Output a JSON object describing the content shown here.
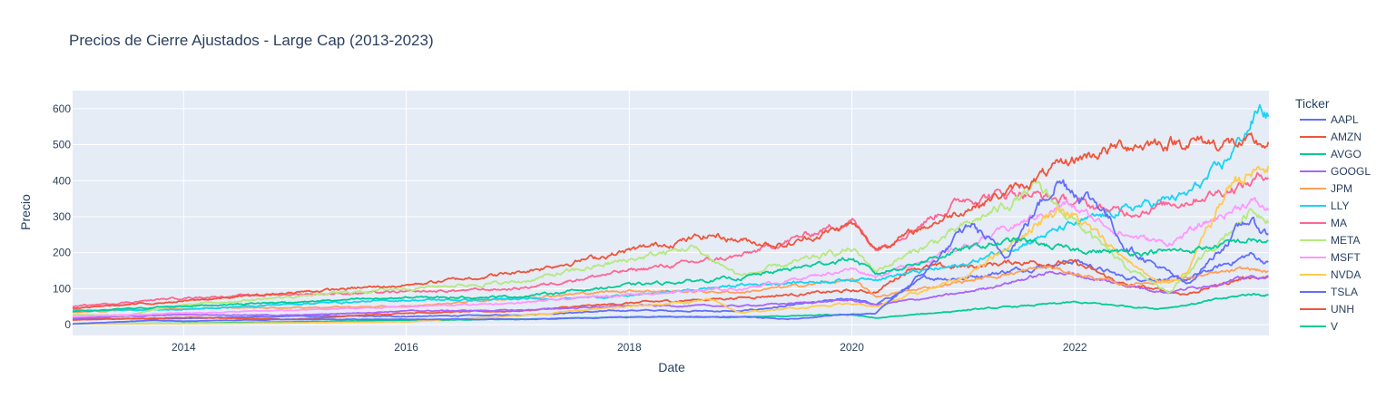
{
  "chart_data": {
    "type": "line",
    "title": "Precios de Cierre Ajustados - Large Cap (2013-2023)",
    "xlabel": "Date",
    "ylabel": "Precio",
    "x_range": [
      "2013-01-02",
      "2023-09-29"
    ],
    "ylim": [
      -30,
      650
    ],
    "x_ticks": [
      "2014",
      "2016",
      "2018",
      "2020",
      "2022"
    ],
    "y_ticks": [
      0,
      100,
      200,
      300,
      400,
      500,
      600
    ],
    "grid": true,
    "legend_title": "Ticker",
    "legend_position": "right",
    "background": "#e5ecf6",
    "series": [
      {
        "name": "AAPL",
        "color": "#636efa",
        "noise": 0.06,
        "x": [
          "2013-01-01",
          "2014-01-01",
          "2015-01-01",
          "2016-01-01",
          "2017-01-01",
          "2018-01-01",
          "2019-01-01",
          "2020-01-01",
          "2020-03-20",
          "2020-09-01",
          "2021-01-01",
          "2022-01-03",
          "2022-06-15",
          "2023-01-03",
          "2023-07-31",
          "2023-09-29"
        ],
        "y": [
          16,
          17,
          24,
          23,
          27,
          40,
          37,
          73,
          55,
          130,
          130,
          178,
          130,
          125,
          195,
          170
        ]
      },
      {
        "name": "AMZN",
        "color": "#ef553b",
        "noise": 0.06,
        "x": [
          "2013-01-01",
          "2014-01-01",
          "2015-01-01",
          "2016-01-01",
          "2017-01-01",
          "2018-01-01",
          "2019-01-01",
          "2020-01-01",
          "2020-03-20",
          "2020-07-15",
          "2021-01-01",
          "2021-07-01",
          "2022-01-03",
          "2022-06-15",
          "2023-01-03",
          "2023-07-31",
          "2023-09-29"
        ],
        "y": [
          13,
          20,
          15,
          33,
          38,
          60,
          75,
          94,
          90,
          160,
          160,
          175,
          170,
          110,
          85,
          135,
          127
        ]
      },
      {
        "name": "AVGO",
        "color": "#00cc96",
        "noise": 0.06,
        "x": [
          "2013-01-01",
          "2014-01-01",
          "2015-01-01",
          "2016-01-01",
          "2017-01-01",
          "2018-01-01",
          "2019-01-01",
          "2020-01-01",
          "2020-03-20",
          "2021-01-01",
          "2022-01-03",
          "2022-10-01",
          "2023-01-03",
          "2023-07-31",
          "2023-09-29"
        ],
        "y": [
          3,
          4,
          8,
          12,
          15,
          21,
          21,
          28,
          18,
          40,
          62,
          45,
          55,
          85,
          83
        ]
      },
      {
        "name": "GOOGL",
        "color": "#ab63fa",
        "noise": 0.05,
        "x": [
          "2013-01-01",
          "2014-01-01",
          "2015-01-01",
          "2016-01-01",
          "2017-01-01",
          "2018-01-01",
          "2019-01-01",
          "2020-01-01",
          "2020-03-20",
          "2021-01-01",
          "2021-11-01",
          "2022-06-15",
          "2022-11-01",
          "2023-07-31",
          "2023-09-29"
        ],
        "y": [
          18,
          28,
          26,
          38,
          40,
          53,
          52,
          68,
          55,
          88,
          148,
          110,
          90,
          132,
          131
        ]
      },
      {
        "name": "JPM",
        "color": "#ffa15a",
        "noise": 0.05,
        "x": [
          "2013-01-01",
          "2014-01-01",
          "2015-01-01",
          "2016-01-01",
          "2017-01-01",
          "2018-01-01",
          "2019-01-01",
          "2020-01-01",
          "2020-03-20",
          "2021-01-01",
          "2021-10-01",
          "2022-06-15",
          "2023-01-03",
          "2023-07-31",
          "2023-09-29"
        ],
        "y": [
          35,
          45,
          48,
          50,
          75,
          95,
          90,
          125,
          78,
          120,
          160,
          110,
          130,
          155,
          145
        ]
      },
      {
        "name": "LLY",
        "color": "#19d3f3",
        "noise": 0.05,
        "x": [
          "2013-01-01",
          "2014-01-01",
          "2015-01-01",
          "2016-01-01",
          "2017-01-01",
          "2018-01-01",
          "2019-01-01",
          "2020-01-01",
          "2020-03-20",
          "2021-01-01",
          "2021-12-01",
          "2022-06-15",
          "2023-01-03",
          "2023-05-01",
          "2023-08-31",
          "2023-09-29"
        ],
        "y": [
          40,
          42,
          58,
          68,
          70,
          80,
          110,
          125,
          130,
          165,
          270,
          320,
          360,
          440,
          600,
          580
        ]
      },
      {
        "name": "MA",
        "color": "#ff6692",
        "noise": 0.05,
        "x": [
          "2013-01-01",
          "2014-01-01",
          "2015-01-01",
          "2016-01-01",
          "2017-01-01",
          "2018-01-01",
          "2019-01-01",
          "2020-01-01",
          "2020-03-20",
          "2021-01-01",
          "2021-07-01",
          "2022-06-15",
          "2023-01-03",
          "2023-07-31",
          "2023-09-29"
        ],
        "y": [
          50,
          75,
          85,
          90,
          100,
          150,
          190,
          290,
          210,
          350,
          370,
          310,
          345,
          395,
          425
        ]
      },
      {
        "name": "META",
        "color": "#b6e880",
        "noise": 0.06,
        "x": [
          "2013-01-01",
          "2013-07-01",
          "2014-01-01",
          "2015-01-01",
          "2016-01-01",
          "2017-01-01",
          "2018-01-01",
          "2018-07-25",
          "2019-01-01",
          "2020-01-01",
          "2020-03-20",
          "2021-01-01",
          "2021-09-01",
          "2022-06-15",
          "2022-11-03",
          "2023-07-31",
          "2023-09-29"
        ],
        "y": [
          28,
          26,
          55,
          78,
          102,
          118,
          180,
          215,
          135,
          210,
          150,
          270,
          380,
          160,
          90,
          320,
          300
        ]
      },
      {
        "name": "MSFT",
        "color": "#ff97ff",
        "noise": 0.05,
        "x": [
          "2013-01-01",
          "2014-01-01",
          "2015-01-01",
          "2016-01-01",
          "2017-01-01",
          "2018-01-01",
          "2019-01-01",
          "2020-01-01",
          "2020-03-20",
          "2021-01-01",
          "2021-12-01",
          "2022-06-15",
          "2022-11-01",
          "2023-07-31",
          "2023-09-29"
        ],
        "y": [
          23,
          32,
          40,
          50,
          60,
          85,
          100,
          155,
          135,
          215,
          335,
          250,
          225,
          345,
          315
        ]
      },
      {
        "name": "NVDA",
        "color": "#fecb52",
        "noise": 0.07,
        "x": [
          "2013-01-01",
          "2014-01-01",
          "2015-01-01",
          "2016-01-01",
          "2017-01-01",
          "2018-01-01",
          "2018-10-01",
          "2019-01-01",
          "2020-01-01",
          "2020-03-20",
          "2021-01-01",
          "2021-11-15",
          "2022-10-01",
          "2023-01-03",
          "2023-06-01",
          "2023-09-29"
        ],
        "y": [
          3,
          3,
          5,
          8,
          25,
          50,
          68,
          33,
          60,
          50,
          130,
          330,
          112,
          143,
          400,
          435
        ]
      },
      {
        "name": "TSLA",
        "color": "#636efa",
        "noise": 0.07,
        "x": [
          "2013-01-01",
          "2013-10-01",
          "2014-01-01",
          "2015-01-01",
          "2016-01-01",
          "2017-01-01",
          "2018-01-01",
          "2019-01-01",
          "2019-06-01",
          "2020-01-01",
          "2020-03-18",
          "2020-08-31",
          "2021-01-25",
          "2021-05-15",
          "2021-11-04",
          "2022-03-30",
          "2022-06-15",
          "2023-01-03",
          "2023-07-19",
          "2023-09-29"
        ],
        "y": [
          2,
          12,
          10,
          15,
          15,
          15,
          21,
          22,
          15,
          30,
          30,
          150,
          280,
          190,
          405,
          330,
          220,
          110,
          290,
          250
        ]
      },
      {
        "name": "UNH",
        "color": "#ef553b",
        "noise": 0.05,
        "x": [
          "2013-01-01",
          "2014-01-01",
          "2015-01-01",
          "2016-01-01",
          "2017-01-01",
          "2018-01-01",
          "2018-10-01",
          "2019-01-01",
          "2019-06-01",
          "2020-01-01",
          "2020-03-20",
          "2021-01-01",
          "2021-07-01",
          "2022-01-03",
          "2022-06-15",
          "2023-01-03",
          "2023-07-31",
          "2023-09-29"
        ],
        "y": [
          46,
          65,
          90,
          110,
          145,
          205,
          250,
          235,
          220,
          280,
          210,
          320,
          380,
          460,
          500,
          510,
          500,
          500
        ]
      },
      {
        "name": "V",
        "color": "#00cc96",
        "noise": 0.05,
        "x": [
          "2013-01-01",
          "2014-01-01",
          "2015-01-01",
          "2016-01-01",
          "2017-01-01",
          "2018-01-01",
          "2019-01-01",
          "2020-01-01",
          "2020-03-20",
          "2021-01-01",
          "2021-07-01",
          "2021-12-01",
          "2022-06-15",
          "2023-01-03",
          "2023-07-31",
          "2023-09-29"
        ],
        "y": [
          36,
          52,
          63,
          75,
          78,
          110,
          130,
          185,
          140,
          210,
          235,
          210,
          200,
          205,
          235,
          230
        ]
      }
    ]
  }
}
